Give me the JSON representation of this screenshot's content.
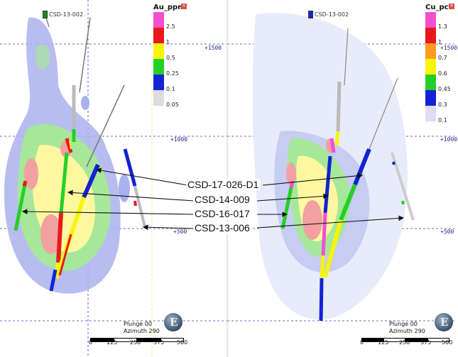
{
  "left_panel": {
    "collar_label": "CSD-13-002",
    "legend": {
      "title": "Au_ppm",
      "items": [
        {
          "color": "#f24fd2",
          "label": "2.5"
        },
        {
          "color": "#e8191b",
          "label": "1"
        },
        {
          "color": "#f7f40d",
          "label": "0.5"
        },
        {
          "color": "#26cf28",
          "label": "0.25"
        },
        {
          "color": "#1323d4",
          "label": "0.1"
        },
        {
          "color": "#dcdcdc",
          "label": "0.05"
        }
      ]
    },
    "levels": [
      "+1500",
      "+1000",
      "+500"
    ],
    "view": {
      "plunge": "Plunge 00",
      "azimuth": "Azimuth 290"
    },
    "scale": [
      "0",
      "125",
      "250",
      "375",
      "500"
    ]
  },
  "right_panel": {
    "collar_label": "CSD-13-002",
    "legend": {
      "title": "Cu_pct",
      "items": [
        {
          "color": "#f24fd2",
          "label": "1.3"
        },
        {
          "color": "#e8191b",
          "label": "1"
        },
        {
          "color": "#ff9b21",
          "label": "0.7"
        },
        {
          "color": "#f7f40d",
          "label": "0.6"
        },
        {
          "color": "#26cf28",
          "label": "0.45"
        },
        {
          "color": "#1323d4",
          "label": "0.3"
        },
        {
          "color": "#dcdcf5",
          "label": "0.1"
        }
      ]
    },
    "levels": [
      "+1500",
      "+1000",
      "+500"
    ],
    "view": {
      "plunge": "Plunge 00",
      "azimuth": "Azimuth 290"
    },
    "scale": [
      "0",
      "125",
      "250",
      "375",
      "500"
    ]
  },
  "callouts": [
    "CSD-17-026-D1",
    "CSD-14-009",
    "CSD-16-017",
    "CSD-13-006"
  ],
  "colors": {
    "level_line": "#3b3bb0",
    "halo_outer": "#aab1ee",
    "halo_green": "#a6e79a",
    "halo_yellow": "#fdf8a0",
    "halo_red": "#f3a0a0"
  }
}
